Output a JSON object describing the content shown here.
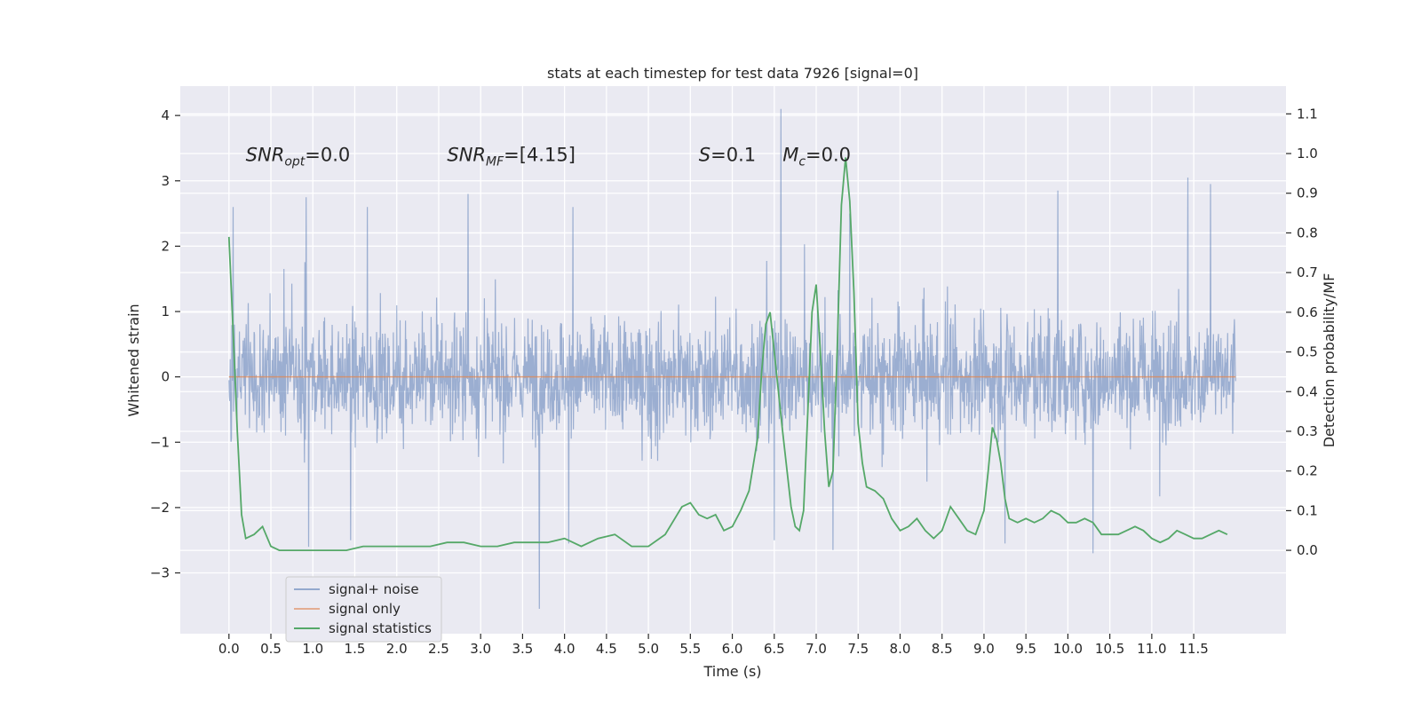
{
  "chart_data": {
    "type": "line",
    "title": "stats at each timestep for test data 7926 [signal=0]",
    "xlabel": "Time (s)",
    "ylabel": "Whitened strain",
    "y2label": "Detection probability/MF",
    "xlim": [
      -0.58,
      12.6
    ],
    "ylim": [
      -3.93,
      4.45
    ],
    "y2lim": [
      -0.21,
      1.17
    ],
    "x_ticks": [
      0.0,
      0.5,
      1.0,
      1.5,
      2.0,
      2.5,
      3.0,
      3.5,
      4.0,
      4.5,
      5.0,
      5.5,
      6.0,
      6.5,
      7.0,
      7.5,
      8.0,
      8.5,
      9.0,
      9.5,
      10.0,
      10.5,
      11.0,
      11.5
    ],
    "x_tick_labels": [
      "0.0",
      "0.5",
      "1.0",
      "1.5",
      "2.0",
      "2.5",
      "3.0",
      "3.5",
      "4.0",
      "4.5",
      "5.0",
      "5.5",
      "6.0",
      "6.5",
      "7.0",
      "7.5",
      "8.0",
      "8.5",
      "9.0",
      "9.5",
      "10.0",
      "10.5",
      "11.0",
      "11.5"
    ],
    "y_ticks": [
      -3,
      -2,
      -1,
      0,
      1,
      2,
      3,
      4
    ],
    "y_tick_labels": [
      "−3",
      "−2",
      "−1",
      "0",
      "1",
      "2",
      "3",
      "4"
    ],
    "y2_ticks": [
      0.0,
      0.1,
      0.2,
      0.3,
      0.4,
      0.5,
      0.6,
      0.7,
      0.8,
      0.9,
      1.0,
      1.1
    ],
    "y2_tick_labels": [
      "0.0",
      "0.1",
      "0.2",
      "0.3",
      "0.4",
      "0.5",
      "0.6",
      "0.7",
      "0.8",
      "0.9",
      "1.0",
      "1.1"
    ],
    "grid": true,
    "legend_placement": "lower-left",
    "annotations": [
      {
        "text": "SNR_opt=0.0",
        "x": 0.2,
        "y": 3.3
      },
      {
        "text": "SNR_MF=[4.15]",
        "x": 2.6,
        "y": 3.3
      },
      {
        "text": "S=0.1",
        "x": 5.6,
        "y": 3.3
      },
      {
        "text": "M_c=0.0",
        "x": 6.6,
        "y": 3.3
      }
    ],
    "series": [
      {
        "name": "signal+ noise",
        "color": "#4c72b0",
        "axis": "left",
        "kind": "noise",
        "x_range": [
          0.0,
          12.0
        ],
        "typical_range": [
          -1.4,
          1.5
        ],
        "extreme_range": [
          -3.55,
          4.1
        ],
        "spikes": [
          {
            "x": 0.05,
            "y": 2.6
          },
          {
            "x": 0.92,
            "y": 2.75
          },
          {
            "x": 1.65,
            "y": 2.6
          },
          {
            "x": 2.85,
            "y": 2.8
          },
          {
            "x": 4.1,
            "y": 2.6
          },
          {
            "x": 6.58,
            "y": 4.1
          },
          {
            "x": 7.4,
            "y": 2.5
          },
          {
            "x": 9.88,
            "y": 2.85
          },
          {
            "x": 11.43,
            "y": 3.05
          },
          {
            "x": 11.7,
            "y": 2.95
          },
          {
            "x": 3.7,
            "y": -3.55
          },
          {
            "x": 0.95,
            "y": -2.6
          },
          {
            "x": 1.45,
            "y": -2.5
          },
          {
            "x": 4.05,
            "y": -2.55
          },
          {
            "x": 7.2,
            "y": -2.65
          },
          {
            "x": 10.3,
            "y": -2.7
          },
          {
            "x": 6.5,
            "y": -2.5
          },
          {
            "x": 9.25,
            "y": -2.55
          }
        ]
      },
      {
        "name": "signal only",
        "color": "#dd8452",
        "axis": "left",
        "x": [
          0.0,
          12.0
        ],
        "y": [
          0.0,
          0.0
        ]
      },
      {
        "name": "signal statistics",
        "color": "#55a868",
        "axis": "right",
        "x": [
          0.0,
          0.05,
          0.1,
          0.15,
          0.2,
          0.3,
          0.4,
          0.5,
          0.6,
          0.8,
          1.0,
          1.2,
          1.4,
          1.6,
          1.8,
          2.0,
          2.2,
          2.4,
          2.6,
          2.8,
          3.0,
          3.2,
          3.4,
          3.6,
          3.7,
          3.8,
          4.0,
          4.2,
          4.4,
          4.6,
          4.8,
          5.0,
          5.2,
          5.4,
          5.5,
          5.6,
          5.7,
          5.8,
          5.9,
          6.0,
          6.1,
          6.2,
          6.3,
          6.35,
          6.4,
          6.45,
          6.5,
          6.6,
          6.7,
          6.75,
          6.8,
          6.85,
          6.9,
          6.95,
          7.0,
          7.05,
          7.1,
          7.15,
          7.2,
          7.25,
          7.3,
          7.35,
          7.4,
          7.45,
          7.5,
          7.55,
          7.6,
          7.7,
          7.8,
          7.9,
          8.0,
          8.1,
          8.2,
          8.3,
          8.4,
          8.5,
          8.6,
          8.7,
          8.8,
          8.9,
          9.0,
          9.05,
          9.1,
          9.15,
          9.2,
          9.25,
          9.3,
          9.4,
          9.5,
          9.6,
          9.7,
          9.8,
          9.9,
          10.0,
          10.1,
          10.2,
          10.3,
          10.4,
          10.5,
          10.6,
          10.7,
          10.8,
          10.9,
          11.0,
          11.1,
          11.2,
          11.3,
          11.4,
          11.5,
          11.6,
          11.7,
          11.8,
          11.9
        ],
        "y": [
          0.79,
          0.55,
          0.3,
          0.09,
          0.03,
          0.04,
          0.06,
          0.01,
          0.0,
          0.0,
          0.0,
          0.0,
          0.0,
          0.01,
          0.01,
          0.01,
          0.01,
          0.01,
          0.02,
          0.02,
          0.01,
          0.01,
          0.02,
          0.02,
          0.02,
          0.02,
          0.03,
          0.01,
          0.03,
          0.04,
          0.01,
          0.01,
          0.04,
          0.11,
          0.12,
          0.09,
          0.08,
          0.09,
          0.05,
          0.06,
          0.1,
          0.15,
          0.28,
          0.45,
          0.57,
          0.6,
          0.5,
          0.3,
          0.11,
          0.06,
          0.05,
          0.1,
          0.35,
          0.6,
          0.67,
          0.5,
          0.3,
          0.16,
          0.2,
          0.5,
          0.87,
          0.99,
          0.88,
          0.65,
          0.32,
          0.22,
          0.16,
          0.15,
          0.13,
          0.08,
          0.05,
          0.06,
          0.08,
          0.05,
          0.03,
          0.05,
          0.11,
          0.08,
          0.05,
          0.04,
          0.1,
          0.2,
          0.31,
          0.28,
          0.22,
          0.13,
          0.08,
          0.07,
          0.08,
          0.07,
          0.08,
          0.1,
          0.09,
          0.07,
          0.07,
          0.08,
          0.07,
          0.04,
          0.04,
          0.04,
          0.05,
          0.06,
          0.05,
          0.03,
          0.02,
          0.03,
          0.05,
          0.04,
          0.03,
          0.03,
          0.04,
          0.05,
          0.04
        ]
      }
    ]
  }
}
